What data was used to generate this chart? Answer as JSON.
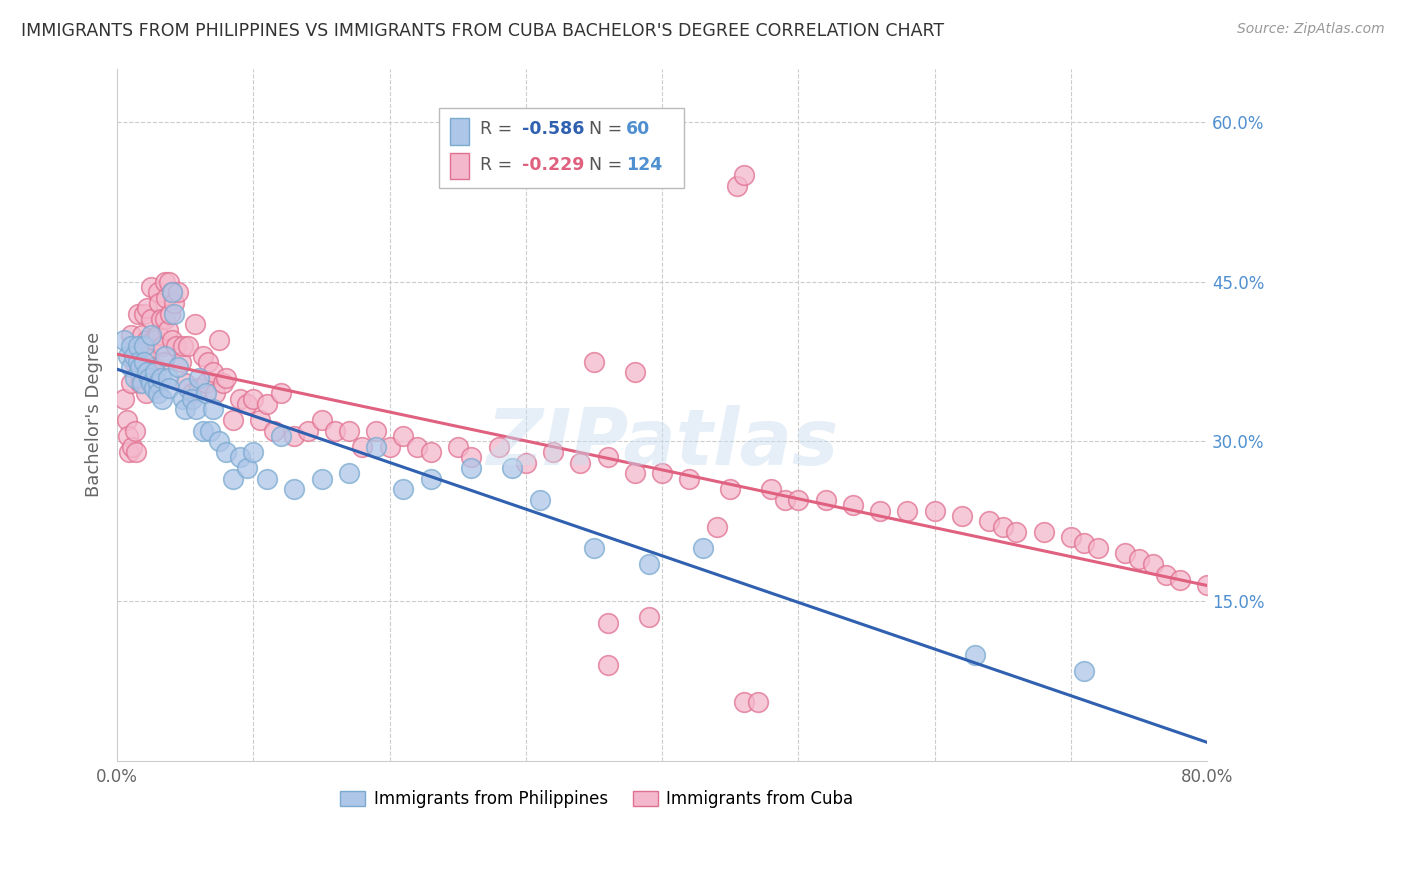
{
  "title": "IMMIGRANTS FROM PHILIPPINES VS IMMIGRANTS FROM CUBA BACHELOR'S DEGREE CORRELATION CHART",
  "source": "Source: ZipAtlas.com",
  "ylabel": "Bachelor's Degree",
  "xlim": [
    0.0,
    0.8
  ],
  "ylim": [
    0.0,
    0.65
  ],
  "philippines_color": "#aec6e8",
  "philippines_edge": "#7aaad0",
  "cuba_color": "#f4b8cc",
  "cuba_edge": "#e07090",
  "regression_philippines_color": "#3060b0",
  "regression_cuba_color": "#e06080",
  "philippines_R": -0.586,
  "philippines_N": 60,
  "cuba_R": -0.229,
  "cuba_N": 124,
  "watermark": "ZIPatlas",
  "background_color": "#ffffff",
  "grid_color": "#cccccc",
  "title_color": "#333333",
  "right_axis_color": "#5090d0",
  "legend_r_color": "#555555",
  "legend_n_color": "#5090d0",
  "legend_phil_r_color": "#3060b0",
  "legend_cuba_r_color": "#e06080",
  "phil_x": [
    0.005,
    0.008,
    0.01,
    0.01,
    0.012,
    0.013,
    0.015,
    0.015,
    0.017,
    0.018,
    0.02,
    0.02,
    0.022,
    0.023,
    0.025,
    0.025,
    0.027,
    0.028,
    0.03,
    0.03,
    0.032,
    0.033,
    0.035,
    0.037,
    0.038,
    0.04,
    0.042,
    0.045,
    0.048,
    0.05,
    0.052,
    0.055,
    0.058,
    0.06,
    0.063,
    0.065,
    0.068,
    0.07,
    0.075,
    0.08,
    0.085,
    0.09,
    0.095,
    0.1,
    0.11,
    0.12,
    0.13,
    0.15,
    0.17,
    0.19,
    0.21,
    0.23,
    0.26,
    0.29,
    0.31,
    0.35,
    0.39,
    0.43,
    0.63,
    0.71
  ],
  "phil_y": [
    0.395,
    0.38,
    0.39,
    0.37,
    0.38,
    0.36,
    0.39,
    0.375,
    0.37,
    0.355,
    0.39,
    0.375,
    0.365,
    0.36,
    0.4,
    0.355,
    0.35,
    0.365,
    0.355,
    0.345,
    0.36,
    0.34,
    0.38,
    0.36,
    0.35,
    0.44,
    0.42,
    0.37,
    0.34,
    0.33,
    0.35,
    0.34,
    0.33,
    0.36,
    0.31,
    0.345,
    0.31,
    0.33,
    0.3,
    0.29,
    0.265,
    0.285,
    0.275,
    0.29,
    0.265,
    0.305,
    0.255,
    0.265,
    0.27,
    0.295,
    0.255,
    0.265,
    0.275,
    0.275,
    0.245,
    0.2,
    0.185,
    0.2,
    0.1,
    0.085
  ],
  "cuba_x": [
    0.005,
    0.007,
    0.008,
    0.009,
    0.01,
    0.01,
    0.011,
    0.012,
    0.013,
    0.014,
    0.015,
    0.015,
    0.016,
    0.017,
    0.018,
    0.018,
    0.019,
    0.02,
    0.02,
    0.021,
    0.022,
    0.022,
    0.023,
    0.024,
    0.025,
    0.025,
    0.026,
    0.027,
    0.028,
    0.028,
    0.03,
    0.03,
    0.031,
    0.032,
    0.033,
    0.034,
    0.035,
    0.035,
    0.036,
    0.037,
    0.038,
    0.039,
    0.04,
    0.04,
    0.042,
    0.043,
    0.045,
    0.047,
    0.048,
    0.05,
    0.052,
    0.055,
    0.057,
    0.06,
    0.063,
    0.065,
    0.067,
    0.07,
    0.072,
    0.075,
    0.078,
    0.08,
    0.085,
    0.09,
    0.095,
    0.1,
    0.105,
    0.11,
    0.115,
    0.12,
    0.13,
    0.14,
    0.15,
    0.16,
    0.17,
    0.18,
    0.19,
    0.2,
    0.21,
    0.22,
    0.23,
    0.25,
    0.26,
    0.28,
    0.3,
    0.32,
    0.34,
    0.36,
    0.38,
    0.4,
    0.42,
    0.45,
    0.48,
    0.49,
    0.5,
    0.52,
    0.54,
    0.56,
    0.58,
    0.6,
    0.62,
    0.64,
    0.65,
    0.66,
    0.68,
    0.7,
    0.71,
    0.72,
    0.74,
    0.75,
    0.76,
    0.77,
    0.78,
    0.8,
    0.455,
    0.46,
    0.35,
    0.38,
    0.46,
    0.47,
    0.36,
    0.39,
    0.44,
    0.36
  ],
  "cuba_y": [
    0.34,
    0.32,
    0.305,
    0.29,
    0.4,
    0.355,
    0.295,
    0.375,
    0.31,
    0.29,
    0.42,
    0.385,
    0.37,
    0.355,
    0.4,
    0.36,
    0.39,
    0.42,
    0.38,
    0.345,
    0.425,
    0.395,
    0.38,
    0.365,
    0.445,
    0.415,
    0.395,
    0.37,
    0.395,
    0.355,
    0.44,
    0.4,
    0.43,
    0.415,
    0.39,
    0.375,
    0.45,
    0.415,
    0.435,
    0.405,
    0.45,
    0.42,
    0.44,
    0.395,
    0.43,
    0.39,
    0.44,
    0.375,
    0.39,
    0.355,
    0.39,
    0.345,
    0.41,
    0.35,
    0.38,
    0.355,
    0.375,
    0.365,
    0.345,
    0.395,
    0.355,
    0.36,
    0.32,
    0.34,
    0.335,
    0.34,
    0.32,
    0.335,
    0.31,
    0.345,
    0.305,
    0.31,
    0.32,
    0.31,
    0.31,
    0.295,
    0.31,
    0.295,
    0.305,
    0.295,
    0.29,
    0.295,
    0.285,
    0.295,
    0.28,
    0.29,
    0.28,
    0.285,
    0.27,
    0.27,
    0.265,
    0.255,
    0.255,
    0.245,
    0.245,
    0.245,
    0.24,
    0.235,
    0.235,
    0.235,
    0.23,
    0.225,
    0.22,
    0.215,
    0.215,
    0.21,
    0.205,
    0.2,
    0.195,
    0.19,
    0.185,
    0.175,
    0.17,
    0.165,
    0.54,
    0.55,
    0.375,
    0.365,
    0.055,
    0.055,
    0.13,
    0.135,
    0.22,
    0.09
  ]
}
